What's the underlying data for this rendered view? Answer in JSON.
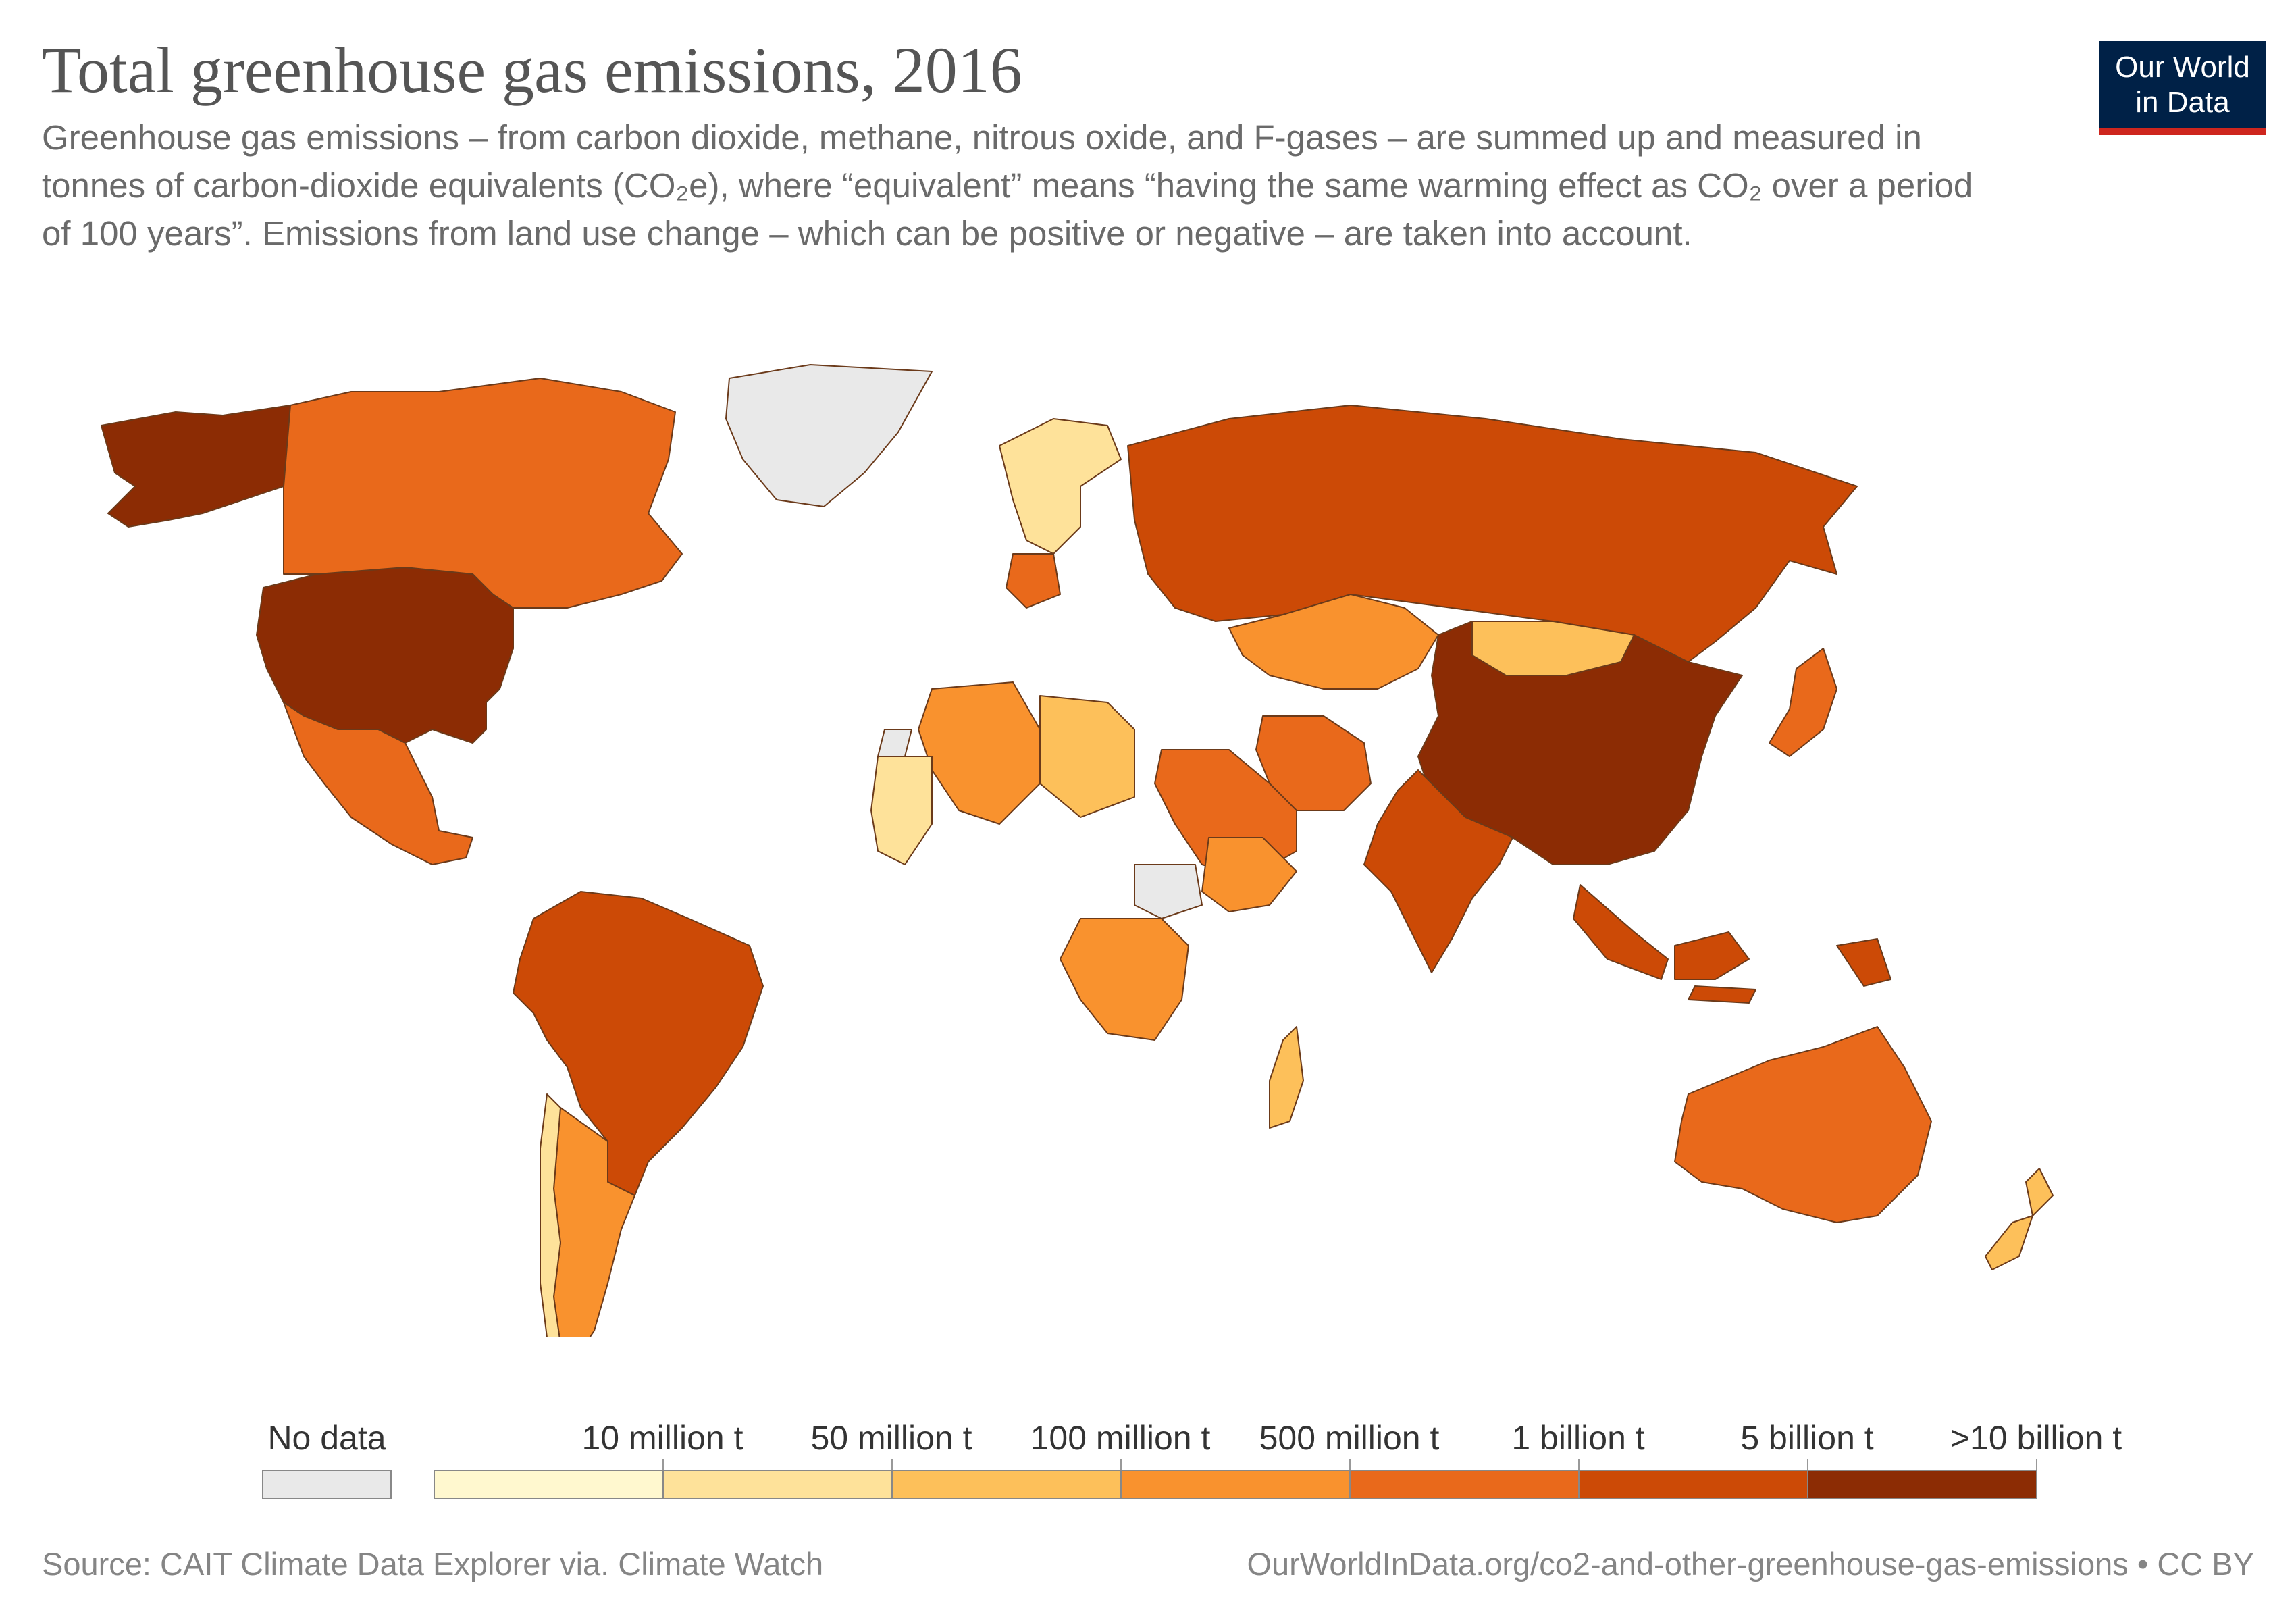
{
  "header": {
    "title": "Total greenhouse gas emissions, 2016",
    "subtitle": "Greenhouse gas emissions – from carbon dioxide, methane, nitrous oxide, and F-gases – are summed up and measured in tonnes of carbon-dioxide equivalents (CO₂e), where “equivalent” means “having the same warming effect as CO₂ over a period of 100 years”. Emissions from land use change – which can be positive or negative – are taken into account."
  },
  "logo": {
    "line1": "Our World",
    "line2": "in Data",
    "bg": "#002147",
    "accent": "#ce261e"
  },
  "legend": {
    "no_data": {
      "label": "No data",
      "color": "#e9e9e9"
    },
    "bins": [
      {
        "label": "10 million t",
        "color": "#fff8cf"
      },
      {
        "label": "50 million t",
        "color": "#fee29a"
      },
      {
        "label": "100 million t",
        "color": "#fdc05a"
      },
      {
        "label": "500 million t",
        "color": "#f9922e"
      },
      {
        "label": "1 billion t",
        "color": "#e9691b"
      },
      {
        "label": "5 billion t",
        "color": "#cc4a06"
      },
      {
        "label": ">10 billion t",
        "color": "#8c2c04"
      }
    ]
  },
  "map_data": {
    "ocean": "#ffffff",
    "regions": [
      {
        "name": "United States",
        "bin": 6
      },
      {
        "name": "China",
        "bin": 6
      },
      {
        "name": "Russia",
        "bin": 5
      },
      {
        "name": "India",
        "bin": 5
      },
      {
        "name": "Brazil",
        "bin": 5
      },
      {
        "name": "Indonesia",
        "bin": 5
      },
      {
        "name": "Canada",
        "bin": 4
      },
      {
        "name": "Mexico",
        "bin": 4
      },
      {
        "name": "Australia",
        "bin": 4
      },
      {
        "name": "Japan",
        "bin": 4
      },
      {
        "name": "Iran",
        "bin": 4
      },
      {
        "name": "Saudi Arabia",
        "bin": 4
      },
      {
        "name": "Germany",
        "bin": 4
      },
      {
        "name": "Argentina",
        "bin": 3
      },
      {
        "name": "Kazakhstan",
        "bin": 3
      },
      {
        "name": "Algeria",
        "bin": 3
      },
      {
        "name": "DR Congo",
        "bin": 3
      },
      {
        "name": "Ethiopia",
        "bin": 3
      },
      {
        "name": "Mongolia",
        "bin": 2
      },
      {
        "name": "Libya",
        "bin": 2
      },
      {
        "name": "Madagascar",
        "bin": 2
      },
      {
        "name": "New Zealand",
        "bin": 2
      },
      {
        "name": "Chile",
        "bin": 1
      },
      {
        "name": "Mauritania",
        "bin": 1
      },
      {
        "name": "Scandinavia",
        "bin": 1
      },
      {
        "name": "Greenland",
        "bin": -1
      },
      {
        "name": "Western Sahara",
        "bin": -1
      },
      {
        "name": "South Sudan",
        "bin": -1
      }
    ]
  },
  "footer": {
    "source": "Source: CAIT Climate Data Explorer via. Climate Watch",
    "url": "OurWorldInData.org/co2-and-other-greenhouse-gas-emissions • CC BY"
  }
}
